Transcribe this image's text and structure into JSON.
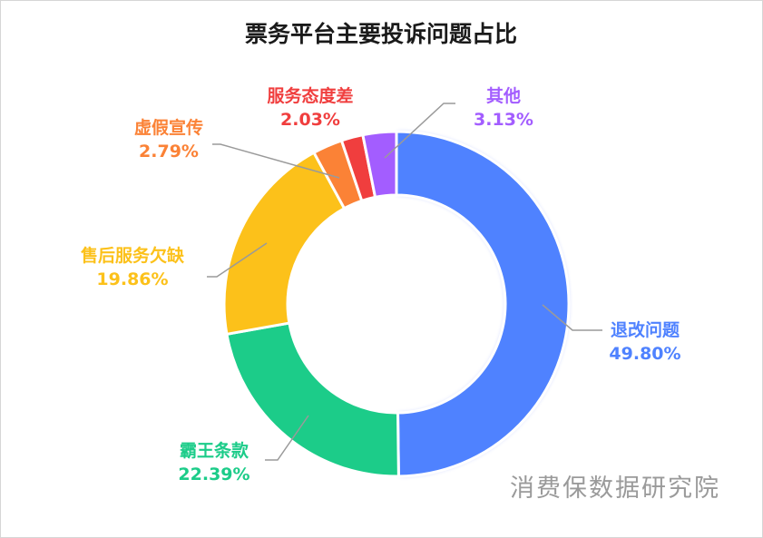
{
  "chart_data": {
    "type": "pie",
    "title": "票务平台主要投诉问题占比",
    "series": [
      {
        "name": "退改问题",
        "value": 49.8,
        "label": "49.80%",
        "color": "#4f82ff"
      },
      {
        "name": "霸王条款",
        "value": 22.39,
        "label": "22.39%",
        "color": "#1ccc89"
      },
      {
        "name": "售后服务欠缺",
        "value": 19.86,
        "label": "19.86%",
        "color": "#fcc11a"
      },
      {
        "name": "虚假宣传",
        "value": 2.79,
        "label": "2.79%",
        "color": "#fb8236"
      },
      {
        "name": "服务态度差",
        "value": 2.03,
        "label": "2.03%",
        "color": "#f03e3e"
      },
      {
        "name": "其他",
        "value": 3.13,
        "label": "3.13%",
        "color": "#a35dff"
      }
    ],
    "legend": "none"
  },
  "watermark": "消费保数据研究院"
}
